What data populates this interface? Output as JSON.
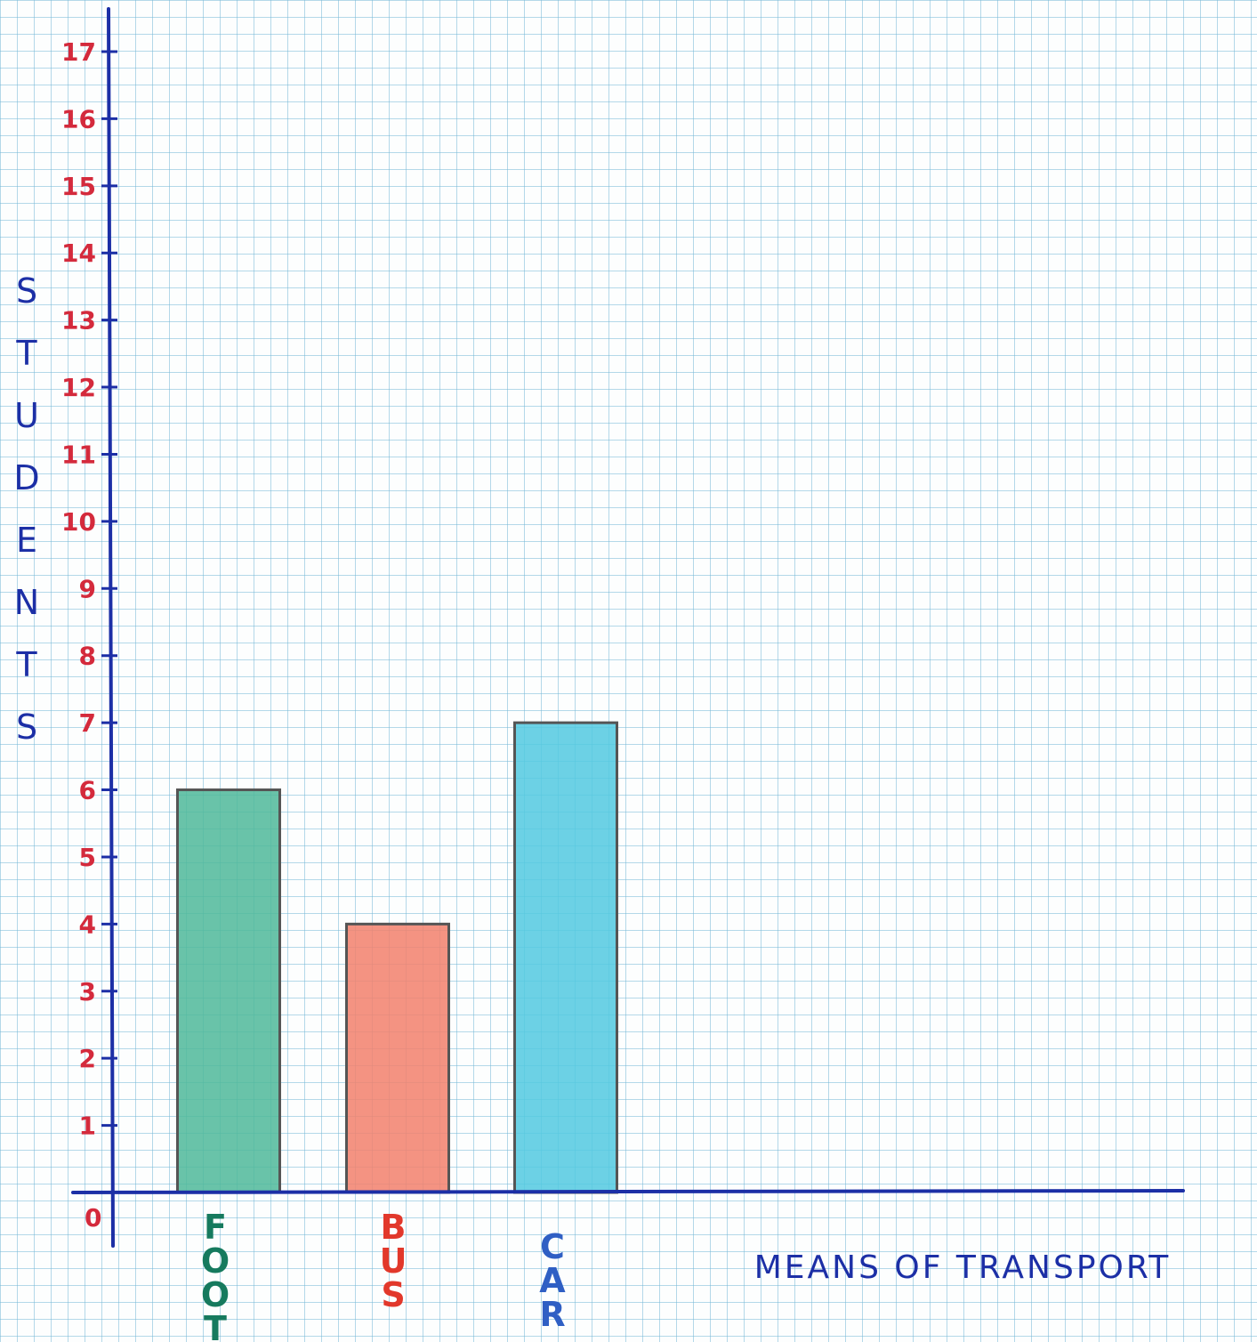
{
  "chart_data": {
    "type": "bar",
    "title": "",
    "xlabel": "MEANS OF TRANSPORT",
    "ylabel": "STUDENTS",
    "origin_label": "0",
    "categories": [
      "FOOT",
      "BUS",
      "CAR"
    ],
    "values": [
      6,
      4,
      7
    ],
    "ylim": [
      0,
      17
    ],
    "yticks": [
      1,
      2,
      3,
      4,
      5,
      6,
      7,
      8,
      9,
      10,
      11,
      12,
      13,
      14,
      15,
      16,
      17
    ],
    "grid": true,
    "legend": "none"
  },
  "colors": {
    "axis": "#1c2fa6",
    "tick_labels": "#d42a3c",
    "ylabel": "#1c2fa6",
    "xlabel": "#1c2fa6",
    "bar_outline": "#555555",
    "grid": "#8cc3dc",
    "bars": [
      "#4fb99a",
      "#f2806c",
      "#52c9e0"
    ],
    "category_labels": [
      "#167a5e",
      "#e2382b",
      "#2f5fc4"
    ]
  }
}
